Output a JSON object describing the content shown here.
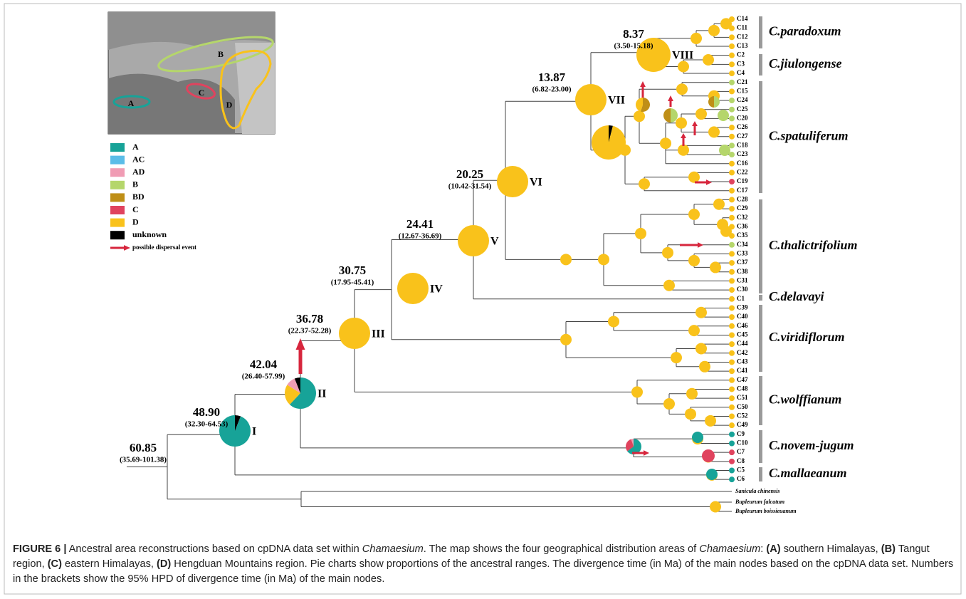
{
  "map_labels": [
    "A",
    "B",
    "C",
    "D"
  ],
  "legend": [
    {
      "label": "A",
      "color": "#17a398"
    },
    {
      "label": "AC",
      "color": "#5bbde8"
    },
    {
      "label": "AD",
      "color": "#f09cb4"
    },
    {
      "label": "B",
      "color": "#b5d66b"
    },
    {
      "label": "BD",
      "color": "#bf8f17"
    },
    {
      "label": "C",
      "color": "#e0435e"
    },
    {
      "label": "D",
      "color": "#f9c21b"
    },
    {
      "label": "unknown",
      "color": "#000000"
    }
  ],
  "dispersal_label": "possible dispersal event",
  "root": {
    "age": "60.85",
    "hpd": "(35.69-101.38)"
  },
  "nodes": [
    {
      "numeral": "I",
      "age": "48.90",
      "hpd": "(32.30-64.53)"
    },
    {
      "numeral": "II",
      "age": "42.04",
      "hpd": "(26.40-57.99)"
    },
    {
      "numeral": "III",
      "age": "36.78",
      "hpd": "(22.37-52.28)"
    },
    {
      "numeral": "IV",
      "age": "30.75",
      "hpd": "(17.95-45.41)"
    },
    {
      "numeral": "V",
      "age": "24.41",
      "hpd": "(12.67-36.69)"
    },
    {
      "numeral": "VI",
      "age": "20.25",
      "hpd": "(10.42-31.54)"
    },
    {
      "numeral": "VII",
      "age": "13.87",
      "hpd": "(6.82-23.00)"
    },
    {
      "numeral": "VIII",
      "age": "8.37",
      "hpd": "(3.50-15.18)"
    }
  ],
  "tips": [
    "C14",
    "C11",
    "C12",
    "C13",
    "C2",
    "C3",
    "C4",
    "C21",
    "C15",
    "C24",
    "C25",
    "C20",
    "C26",
    "C27",
    "C18",
    "C23",
    "C16",
    "C22",
    "C19",
    "C17",
    "C28",
    "C29",
    "C32",
    "C36",
    "C35",
    "C34",
    "C33",
    "C37",
    "C38",
    "C31",
    "C30",
    "C1",
    "C39",
    "C40",
    "C46",
    "C45",
    "C44",
    "C42",
    "C43",
    "C41",
    "C47",
    "C48",
    "C51",
    "C50",
    "C52",
    "C49",
    "C9",
    "C10",
    "C7",
    "C8",
    "C5",
    "C6"
  ],
  "outgroups": [
    "Sanicula chinensis",
    "Bupleurum falcatum",
    "Bupleurum boissieuanum"
  ],
  "clades": [
    "C.paradoxum",
    "C.jiulongense",
    "C.spatuliferum",
    "C.thalictrifolium",
    "C.delavayi",
    "C.viridiflorum",
    "C.wolffianum",
    "C.novem-jugum",
    "C.mallaeanum"
  ],
  "caption": [
    {
      "text": "FIGURE 6 |",
      "style": "b"
    },
    {
      "text": " Ancestral area reconstructions based on cpDNA data set within ",
      "style": "n"
    },
    {
      "text": "Chamaesium",
      "style": "i"
    },
    {
      "text": ". The map shows the four geographical distribution areas of ",
      "style": "n"
    },
    {
      "text": "Chamaesium",
      "style": "i"
    },
    {
      "text": ": ",
      "style": "n"
    },
    {
      "text": "(A)",
      "style": "b"
    },
    {
      "text": " southern Himalayas, ",
      "style": "n"
    },
    {
      "text": "(B)",
      "style": "b"
    },
    {
      "text": " Tangut region, ",
      "style": "n"
    },
    {
      "text": "(C)",
      "style": "b"
    },
    {
      "text": " eastern Himalayas, ",
      "style": "n"
    },
    {
      "text": "(D)",
      "style": "b"
    },
    {
      "text": " Hengduan Mountains region. Pie charts show proportions of the ancestral ranges. The divergence time (in Ma) of the main nodes based on the cpDNA data set. Numbers in the brackets show the 95% HPD of divergence time (in Ma) of the main nodes.",
      "style": "n"
    }
  ]
}
